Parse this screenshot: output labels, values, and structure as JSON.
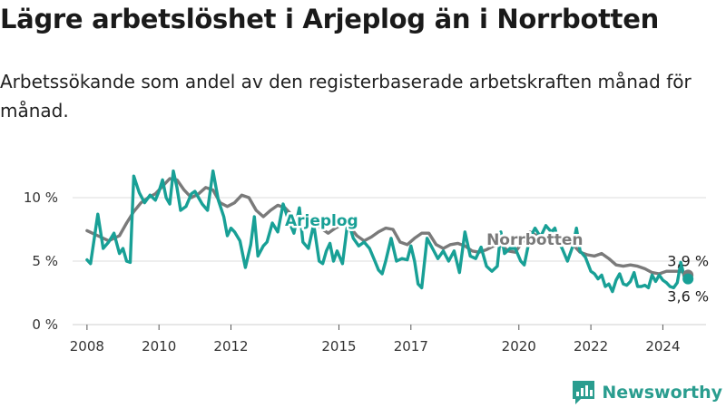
{
  "title": "Lägre arbetslöshet i Arjeplog än i Norrbotten",
  "subtitle": "Arbetssökande som andel av den registerbaserade arbetskraften månad för månad.",
  "brand": {
    "name": "Newsworthy",
    "icon": "bar-chart-logo-icon"
  },
  "colors": {
    "arjeplog": "#18a096",
    "norrbotten": "#7a7a7a",
    "grid": "#dedede",
    "brand": "#2a9d8f"
  },
  "chart_data": {
    "type": "line",
    "xlim": [
      2007.6,
      2025.2
    ],
    "ylim": [
      0,
      12
    ],
    "grid": true,
    "y_ticks": [
      {
        "value": 0,
        "label": "0 %"
      },
      {
        "value": 5,
        "label": "5 %"
      },
      {
        "value": 10,
        "label": "10 %"
      }
    ],
    "x_ticks": [
      {
        "value": 2008,
        "label": "2008"
      },
      {
        "value": 2010,
        "label": "2010"
      },
      {
        "value": 2012,
        "label": "2012"
      },
      {
        "value": 2015,
        "label": "2015"
      },
      {
        "value": 2017,
        "label": "2017"
      },
      {
        "value": 2020,
        "label": "2020"
      },
      {
        "value": 2022,
        "label": "2022"
      },
      {
        "value": 2024,
        "label": "2024"
      }
    ],
    "series": [
      {
        "name": "Norrbotten",
        "color": "#7a7a7a",
        "last_label": "3,9 %",
        "points": [
          [
            2008.0,
            7.4
          ],
          [
            2008.3,
            7.0
          ],
          [
            2008.6,
            6.6
          ],
          [
            2008.9,
            7.0
          ],
          [
            2009.1,
            8.0
          ],
          [
            2009.3,
            8.9
          ],
          [
            2009.5,
            9.6
          ],
          [
            2009.7,
            10.0
          ],
          [
            2009.9,
            10.3
          ],
          [
            2010.1,
            10.9
          ],
          [
            2010.3,
            11.5
          ],
          [
            2010.5,
            11.4
          ],
          [
            2010.7,
            10.6
          ],
          [
            2010.9,
            10.0
          ],
          [
            2011.1,
            10.3
          ],
          [
            2011.3,
            10.8
          ],
          [
            2011.5,
            10.6
          ],
          [
            2011.7,
            9.6
          ],
          [
            2011.9,
            9.3
          ],
          [
            2012.1,
            9.6
          ],
          [
            2012.3,
            10.2
          ],
          [
            2012.5,
            10.0
          ],
          [
            2012.7,
            9.0
          ],
          [
            2012.9,
            8.5
          ],
          [
            2013.1,
            9.0
          ],
          [
            2013.3,
            9.4
          ],
          [
            2013.5,
            9.2
          ],
          [
            2013.7,
            8.6
          ],
          [
            2013.9,
            8.2
          ],
          [
            2014.1,
            8.6
          ],
          [
            2014.3,
            8.3
          ],
          [
            2014.5,
            7.6
          ],
          [
            2014.7,
            7.2
          ],
          [
            2014.9,
            7.6
          ],
          [
            2015.1,
            7.9
          ],
          [
            2015.3,
            7.7
          ],
          [
            2015.5,
            7.0
          ],
          [
            2015.7,
            6.6
          ],
          [
            2015.9,
            6.9
          ],
          [
            2016.1,
            7.3
          ],
          [
            2016.3,
            7.6
          ],
          [
            2016.5,
            7.5
          ],
          [
            2016.7,
            6.5
          ],
          [
            2016.9,
            6.3
          ],
          [
            2017.1,
            6.8
          ],
          [
            2017.3,
            7.2
          ],
          [
            2017.5,
            7.2
          ],
          [
            2017.7,
            6.3
          ],
          [
            2017.9,
            6.0
          ],
          [
            2018.1,
            6.3
          ],
          [
            2018.3,
            6.4
          ],
          [
            2018.5,
            6.2
          ],
          [
            2018.7,
            5.8
          ],
          [
            2018.9,
            5.7
          ],
          [
            2019.1,
            5.9
          ],
          [
            2019.3,
            6.2
          ],
          [
            2019.5,
            6.3
          ],
          [
            2019.7,
            5.8
          ],
          [
            2019.9,
            5.7
          ],
          [
            2020.1,
            6.5
          ],
          [
            2020.3,
            7.3
          ],
          [
            2020.5,
            7.0
          ],
          [
            2020.7,
            6.6
          ],
          [
            2020.9,
            6.6
          ],
          [
            2021.1,
            6.8
          ],
          [
            2021.3,
            6.9
          ],
          [
            2021.5,
            6.3
          ],
          [
            2021.7,
            5.7
          ],
          [
            2021.9,
            5.5
          ],
          [
            2022.1,
            5.4
          ],
          [
            2022.3,
            5.6
          ],
          [
            2022.5,
            5.2
          ],
          [
            2022.7,
            4.7
          ],
          [
            2022.9,
            4.6
          ],
          [
            2023.1,
            4.7
          ],
          [
            2023.3,
            4.6
          ],
          [
            2023.5,
            4.4
          ],
          [
            2023.7,
            4.1
          ],
          [
            2023.9,
            4.0
          ],
          [
            2024.1,
            4.2
          ],
          [
            2024.3,
            4.2
          ],
          [
            2024.5,
            4.2
          ],
          [
            2024.7,
            3.9
          ]
        ]
      },
      {
        "name": "Arjeplog",
        "color": "#18a096",
        "last_label": "3,6 %",
        "points": [
          [
            2008.0,
            5.1
          ],
          [
            2008.1,
            4.8
          ],
          [
            2008.3,
            8.7
          ],
          [
            2008.45,
            6.0
          ],
          [
            2008.6,
            6.5
          ],
          [
            2008.75,
            7.2
          ],
          [
            2008.9,
            5.6
          ],
          [
            2009.0,
            6.0
          ],
          [
            2009.1,
            5.0
          ],
          [
            2009.2,
            4.9
          ],
          [
            2009.3,
            11.7
          ],
          [
            2009.45,
            10.4
          ],
          [
            2009.6,
            9.6
          ],
          [
            2009.75,
            10.2
          ],
          [
            2009.9,
            9.8
          ],
          [
            2010.0,
            10.5
          ],
          [
            2010.1,
            11.4
          ],
          [
            2010.2,
            10.0
          ],
          [
            2010.3,
            9.5
          ],
          [
            2010.4,
            12.1
          ],
          [
            2010.5,
            10.8
          ],
          [
            2010.6,
            9.0
          ],
          [
            2010.75,
            9.3
          ],
          [
            2010.9,
            10.3
          ],
          [
            2011.0,
            10.5
          ],
          [
            2011.2,
            9.5
          ],
          [
            2011.35,
            9.0
          ],
          [
            2011.5,
            12.1
          ],
          [
            2011.65,
            9.8
          ],
          [
            2011.8,
            8.5
          ],
          [
            2011.9,
            7.0
          ],
          [
            2012.0,
            7.6
          ],
          [
            2012.1,
            7.3
          ],
          [
            2012.25,
            6.6
          ],
          [
            2012.4,
            4.5
          ],
          [
            2012.55,
            6.3
          ],
          [
            2012.65,
            8.5
          ],
          [
            2012.75,
            5.4
          ],
          [
            2012.9,
            6.2
          ],
          [
            2013.0,
            6.5
          ],
          [
            2013.15,
            8.0
          ],
          [
            2013.3,
            7.3
          ],
          [
            2013.45,
            9.5
          ],
          [
            2013.6,
            8.2
          ],
          [
            2013.75,
            7.2
          ],
          [
            2013.9,
            9.2
          ],
          [
            2014.0,
            6.5
          ],
          [
            2014.15,
            6.0
          ],
          [
            2014.3,
            7.9
          ],
          [
            2014.45,
            5.0
          ],
          [
            2014.55,
            4.8
          ],
          [
            2014.65,
            5.8
          ],
          [
            2014.75,
            6.4
          ],
          [
            2014.85,
            5.0
          ],
          [
            2014.95,
            5.8
          ],
          [
            2015.1,
            4.8
          ],
          [
            2015.25,
            8.2
          ],
          [
            2015.4,
            6.8
          ],
          [
            2015.55,
            6.2
          ],
          [
            2015.7,
            6.5
          ],
          [
            2015.85,
            6.0
          ],
          [
            2016.0,
            5.0
          ],
          [
            2016.1,
            4.3
          ],
          [
            2016.2,
            4.0
          ],
          [
            2016.3,
            5.0
          ],
          [
            2016.45,
            6.8
          ],
          [
            2016.6,
            5.0
          ],
          [
            2016.75,
            5.2
          ],
          [
            2016.9,
            5.1
          ],
          [
            2017.0,
            6.2
          ],
          [
            2017.1,
            5.0
          ],
          [
            2017.2,
            3.2
          ],
          [
            2017.3,
            2.9
          ],
          [
            2017.45,
            6.8
          ],
          [
            2017.6,
            6.0
          ],
          [
            2017.75,
            5.2
          ],
          [
            2017.9,
            5.8
          ],
          [
            2018.05,
            5.0
          ],
          [
            2018.2,
            5.8
          ],
          [
            2018.35,
            4.1
          ],
          [
            2018.5,
            7.3
          ],
          [
            2018.65,
            5.4
          ],
          [
            2018.8,
            5.2
          ],
          [
            2018.95,
            6.1
          ],
          [
            2019.1,
            4.6
          ],
          [
            2019.25,
            4.2
          ],
          [
            2019.4,
            4.6
          ],
          [
            2019.5,
            7.3
          ],
          [
            2019.6,
            5.6
          ],
          [
            2019.75,
            6.0
          ],
          [
            2019.9,
            6.0
          ],
          [
            2020.05,
            5.0
          ],
          [
            2020.15,
            4.7
          ],
          [
            2020.3,
            6.8
          ],
          [
            2020.45,
            7.6
          ],
          [
            2020.6,
            6.9
          ],
          [
            2020.75,
            7.8
          ],
          [
            2020.9,
            7.3
          ],
          [
            2021.0,
            7.6
          ],
          [
            2021.1,
            6.5
          ],
          [
            2021.2,
            6.0
          ],
          [
            2021.35,
            5.0
          ],
          [
            2021.5,
            6.2
          ],
          [
            2021.6,
            7.6
          ],
          [
            2021.7,
            5.8
          ],
          [
            2021.85,
            5.3
          ],
          [
            2022.0,
            4.2
          ],
          [
            2022.1,
            4.0
          ],
          [
            2022.2,
            3.6
          ],
          [
            2022.3,
            3.9
          ],
          [
            2022.4,
            3.0
          ],
          [
            2022.5,
            3.2
          ],
          [
            2022.6,
            2.6
          ],
          [
            2022.7,
            3.5
          ],
          [
            2022.8,
            4.0
          ],
          [
            2022.9,
            3.2
          ],
          [
            2023.0,
            3.1
          ],
          [
            2023.1,
            3.4
          ],
          [
            2023.2,
            4.1
          ],
          [
            2023.3,
            3.0
          ],
          [
            2023.4,
            3.0
          ],
          [
            2023.5,
            3.1
          ],
          [
            2023.6,
            2.9
          ],
          [
            2023.7,
            3.9
          ],
          [
            2023.8,
            3.4
          ],
          [
            2023.9,
            3.9
          ],
          [
            2024.0,
            3.5
          ],
          [
            2024.1,
            3.3
          ],
          [
            2024.2,
            3.0
          ],
          [
            2024.3,
            2.9
          ],
          [
            2024.4,
            3.3
          ],
          [
            2024.5,
            4.9
          ],
          [
            2024.6,
            3.7
          ],
          [
            2024.7,
            3.6
          ]
        ]
      }
    ],
    "annotations": [
      {
        "series": "Arjeplog",
        "text": "Arjeplog",
        "x": 2013.5,
        "y": 7.8
      },
      {
        "series": "Norrbotten",
        "text": "Norrbotten",
        "x": 2019.1,
        "y": 6.3
      }
    ]
  }
}
